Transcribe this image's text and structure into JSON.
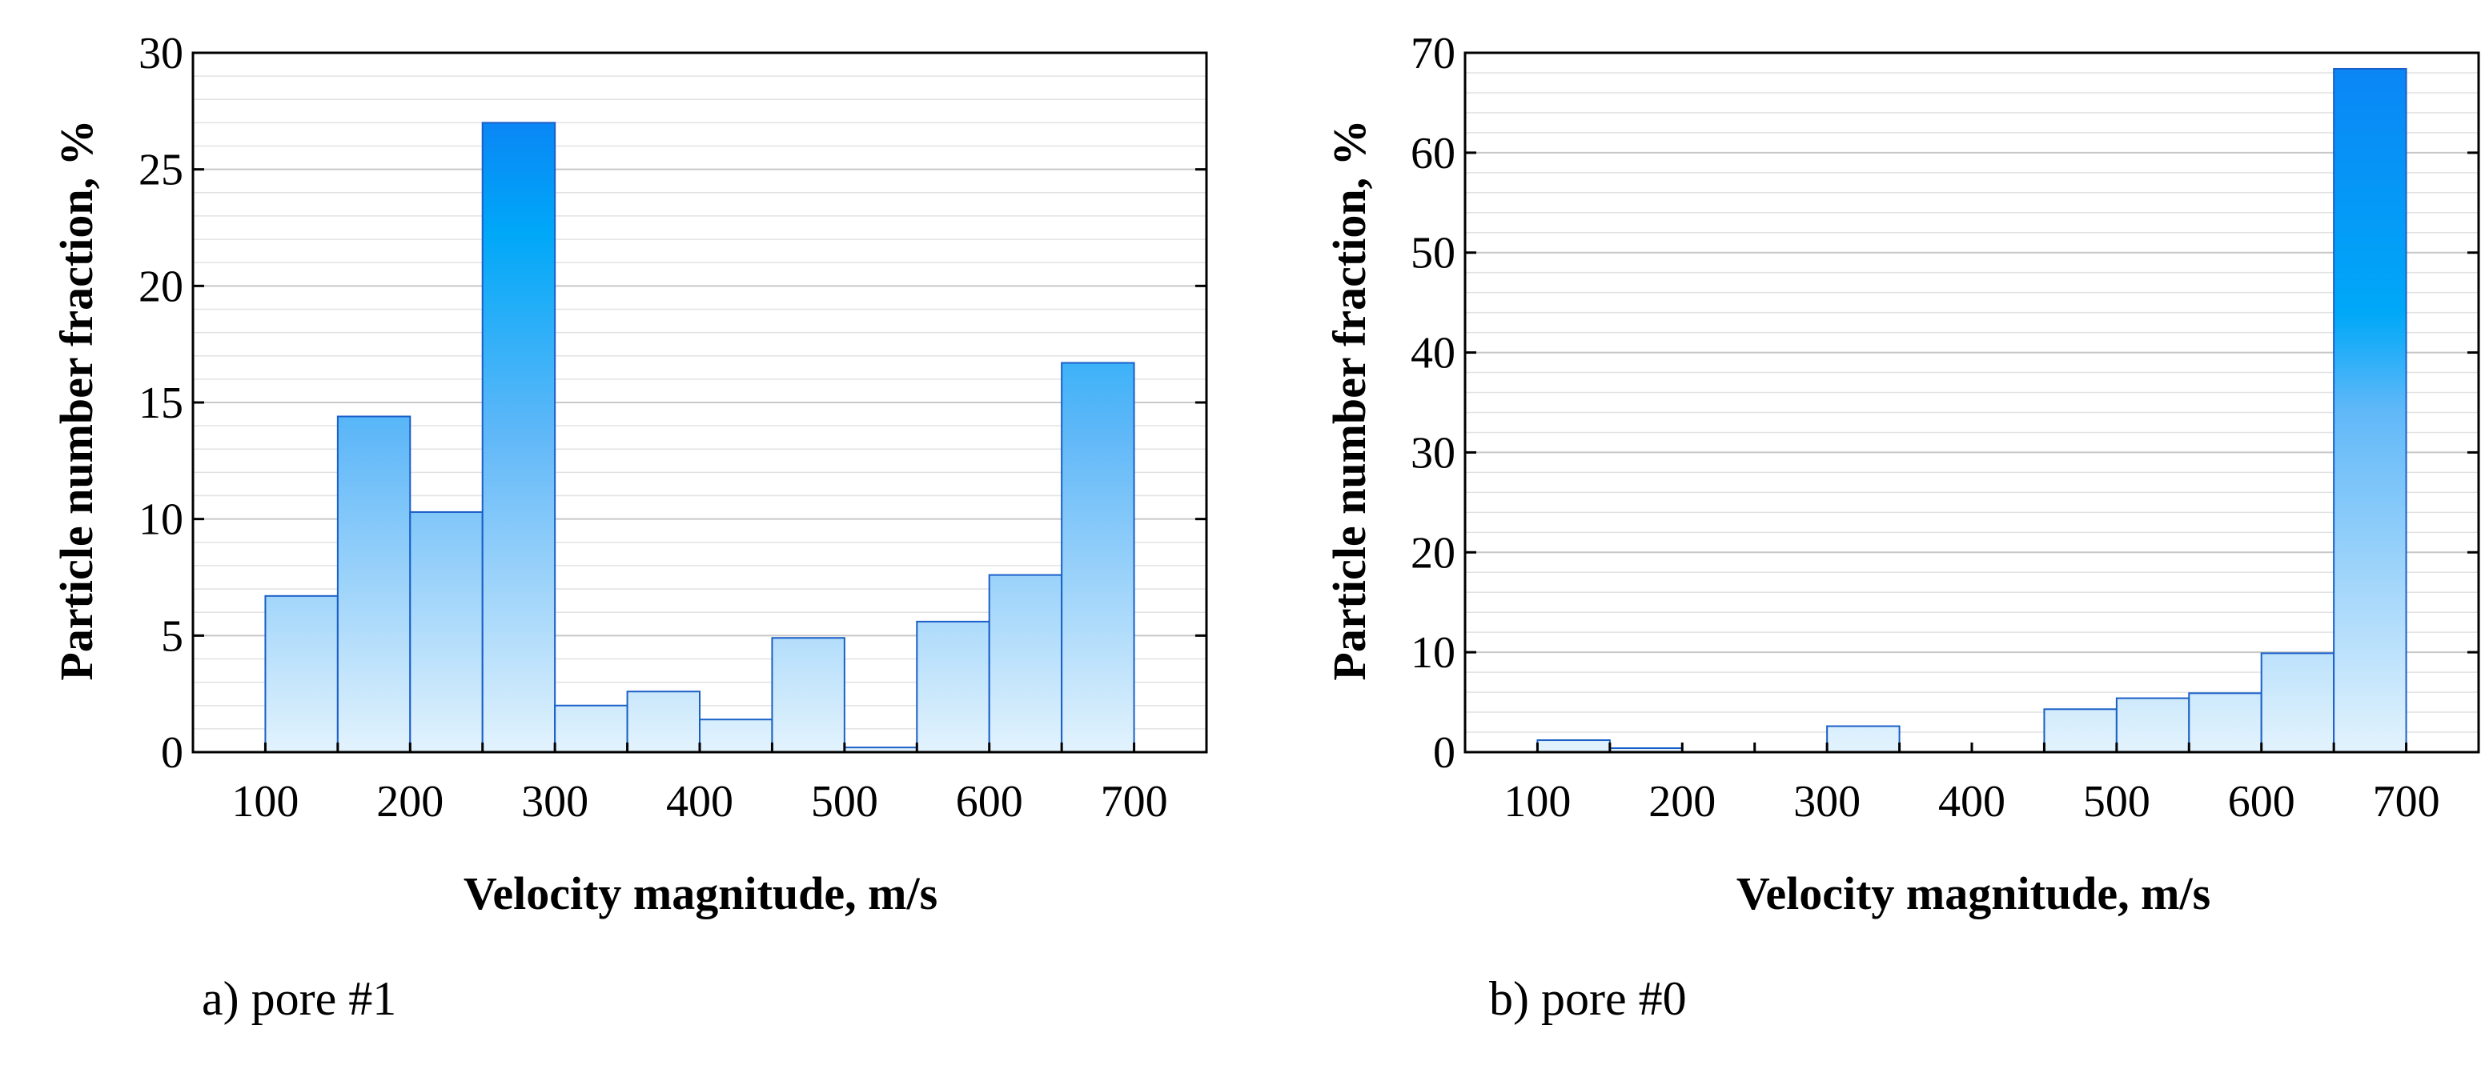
{
  "chart_data": [
    {
      "type": "bar",
      "caption": "a) pore #1",
      "xlabel": "Velocity magnitude, m/s",
      "ylabel": "Particle number fraction, %",
      "xlim": [
        50,
        750
      ],
      "ylim": [
        0,
        30
      ],
      "x_ticks": [
        100,
        200,
        300,
        400,
        500,
        600,
        700
      ],
      "y_ticks": [
        0,
        5,
        10,
        15,
        20,
        25,
        30
      ],
      "bin_width": 50,
      "bin_starts": [
        100,
        150,
        200,
        250,
        300,
        350,
        400,
        450,
        500,
        550,
        600,
        650
      ],
      "values": [
        6.7,
        14.4,
        10.3,
        27.0,
        2.0,
        2.6,
        1.4,
        4.9,
        0.2,
        5.6,
        7.6,
        16.7
      ],
      "grid": true,
      "bar_gradient": [
        "#e3f3fd",
        "#0a86f5"
      ]
    },
    {
      "type": "bar",
      "caption": "b) pore #0",
      "xlabel": "Velocity magnitude, m/s",
      "ylabel": "Particle number fraction, %",
      "xlim": [
        50,
        750
      ],
      "ylim": [
        0,
        70
      ],
      "x_ticks": [
        100,
        200,
        300,
        400,
        500,
        600,
        700
      ],
      "y_ticks": [
        0,
        10,
        20,
        30,
        40,
        50,
        60,
        70
      ],
      "bin_width": 50,
      "bin_starts": [
        100,
        150,
        200,
        250,
        300,
        350,
        400,
        450,
        500,
        550,
        600,
        650
      ],
      "values": [
        1.2,
        0.4,
        0,
        0,
        2.6,
        0,
        0,
        4.3,
        5.4,
        5.9,
        9.9,
        68.4
      ],
      "grid": true,
      "bar_gradient": [
        "#e3f3fd",
        "#0a86f5"
      ]
    }
  ]
}
